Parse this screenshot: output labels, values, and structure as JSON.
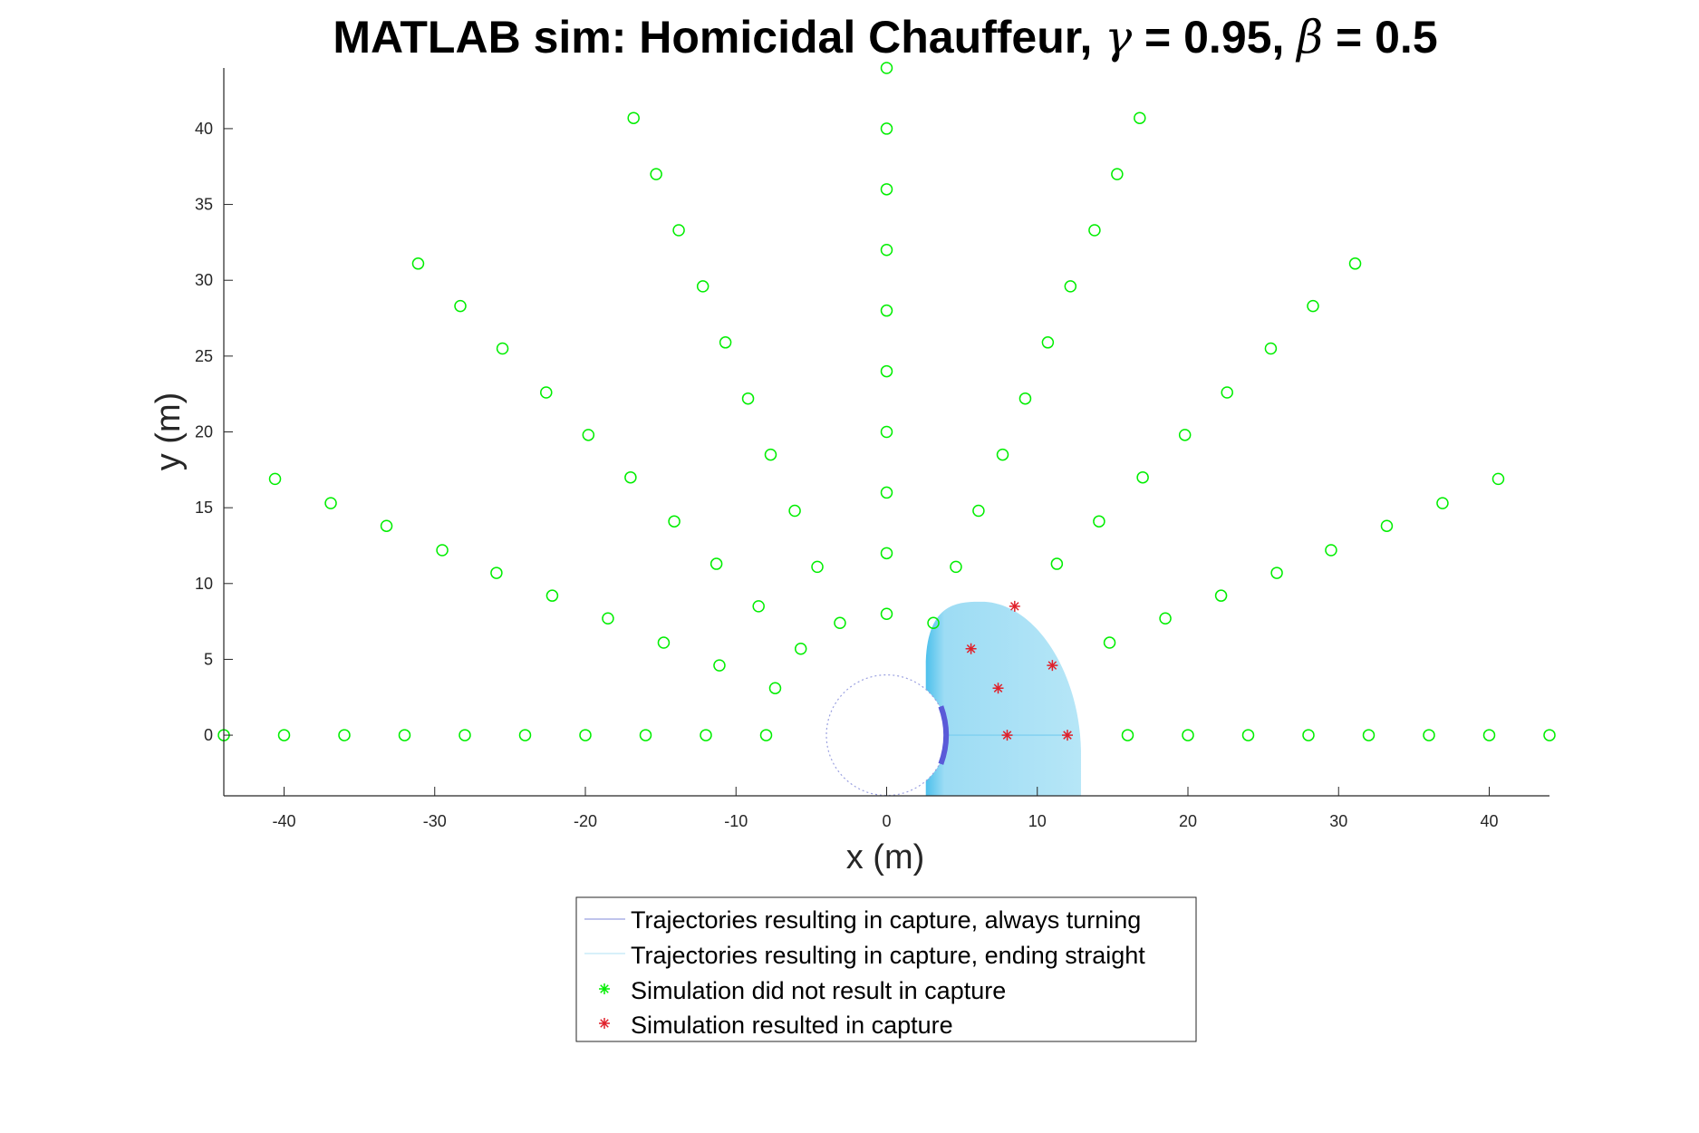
{
  "chart_data": {
    "type": "scatter",
    "title": {
      "prefix": "MATLAB sim: Homicidal Chauffeur, ",
      "gamma_symbol": "γ",
      "gamma_text": " = 0.95, ",
      "beta_symbol": "β",
      "beta_text": " = 0.5"
    },
    "xlabel": "x (m)",
    "ylabel": "y (m)",
    "xlim": [
      -44,
      44
    ],
    "ylim": [
      -4,
      44
    ],
    "xticks": [
      -40,
      -30,
      -20,
      -10,
      0,
      10,
      20,
      30,
      40
    ],
    "yticks": [
      0,
      5,
      10,
      15,
      20,
      25,
      30,
      35,
      40
    ],
    "grid": false,
    "legend_position": "bottom-outside",
    "colors": {
      "no_capture": "#00ee00",
      "capture": "#e0202a",
      "turning": "#5a5ad8",
      "straight": "#7fd0f0",
      "capture_region": "#9ddcf4",
      "capture_region_edge": "#4cc0ec",
      "capture_circle": "#9aa0e0"
    },
    "capture_radius": 4,
    "series": [
      {
        "name": "Simulation did not result in capture",
        "marker": "circle",
        "points": [
          [
            -44,
            0
          ],
          [
            -40,
            0
          ],
          [
            -36,
            0
          ],
          [
            -32,
            0
          ],
          [
            -28,
            0
          ],
          [
            -24,
            0
          ],
          [
            -20,
            0
          ],
          [
            -16,
            0
          ],
          [
            -12,
            0
          ],
          [
            -8,
            0
          ],
          [
            16,
            0
          ],
          [
            20,
            0
          ],
          [
            24,
            0
          ],
          [
            28,
            0
          ],
          [
            32,
            0
          ],
          [
            36,
            0
          ],
          [
            40,
            0
          ],
          [
            44,
            0
          ],
          [
            0,
            8
          ],
          [
            0,
            12
          ],
          [
            0,
            16
          ],
          [
            0,
            20
          ],
          [
            0,
            24
          ],
          [
            0,
            28
          ],
          [
            0,
            32
          ],
          [
            0,
            36
          ],
          [
            0,
            40
          ],
          [
            0,
            44
          ],
          [
            -40.6,
            16.9
          ],
          [
            -36.9,
            15.3
          ],
          [
            -33.2,
            13.8
          ],
          [
            -29.5,
            12.2
          ],
          [
            -25.9,
            10.7
          ],
          [
            -22.2,
            9.2
          ],
          [
            -18.5,
            7.7
          ],
          [
            -14.8,
            6.1
          ],
          [
            -11.1,
            4.6
          ],
          [
            -7.4,
            3.1
          ],
          [
            -31.1,
            31.1
          ],
          [
            -28.3,
            28.3
          ],
          [
            -25.5,
            25.5
          ],
          [
            -22.6,
            22.6
          ],
          [
            -19.8,
            19.8
          ],
          [
            -17.0,
            17.0
          ],
          [
            -14.1,
            14.1
          ],
          [
            -11.3,
            11.3
          ],
          [
            -8.5,
            8.5
          ],
          [
            -5.7,
            5.7
          ],
          [
            -16.8,
            40.7
          ],
          [
            -15.3,
            37.0
          ],
          [
            -13.8,
            33.3
          ],
          [
            -12.2,
            29.6
          ],
          [
            -10.7,
            25.9
          ],
          [
            -9.2,
            22.2
          ],
          [
            -7.7,
            18.5
          ],
          [
            -6.1,
            14.8
          ],
          [
            -4.6,
            11.1
          ],
          [
            -3.1,
            7.4
          ],
          [
            16.8,
            40.7
          ],
          [
            15.3,
            37.0
          ],
          [
            13.8,
            33.3
          ],
          [
            12.2,
            29.6
          ],
          [
            10.7,
            25.9
          ],
          [
            9.2,
            22.2
          ],
          [
            7.7,
            18.5
          ],
          [
            6.1,
            14.8
          ],
          [
            4.6,
            11.1
          ],
          [
            3.1,
            7.4
          ],
          [
            31.1,
            31.1
          ],
          [
            28.3,
            28.3
          ],
          [
            25.5,
            25.5
          ],
          [
            22.6,
            22.6
          ],
          [
            19.8,
            19.8
          ],
          [
            17.0,
            17.0
          ],
          [
            14.1,
            14.1
          ],
          [
            11.3,
            11.3
          ],
          [
            40.6,
            16.9
          ],
          [
            36.9,
            15.3
          ],
          [
            33.2,
            13.8
          ],
          [
            29.5,
            12.2
          ],
          [
            25.9,
            10.7
          ],
          [
            22.2,
            9.2
          ],
          [
            18.5,
            7.7
          ],
          [
            14.8,
            6.1
          ]
        ]
      },
      {
        "name": "Simulation resulted in capture",
        "marker": "asterisk",
        "points": [
          [
            8,
            0
          ],
          [
            12,
            0
          ],
          [
            8.5,
            8.5
          ],
          [
            5.6,
            5.7
          ],
          [
            11,
            4.6
          ],
          [
            7.4,
            3.1
          ]
        ]
      }
    ],
    "legend": [
      {
        "label": "Trajectories resulting in capture, always turning",
        "key": "line-turning"
      },
      {
        "label": "Trajectories resulting in capture, ending straight",
        "key": "line-straight"
      },
      {
        "label": "Simulation did not result in capture",
        "key": "asterisk-green"
      },
      {
        "label": "Simulation resulted in capture",
        "key": "asterisk-red"
      }
    ]
  }
}
